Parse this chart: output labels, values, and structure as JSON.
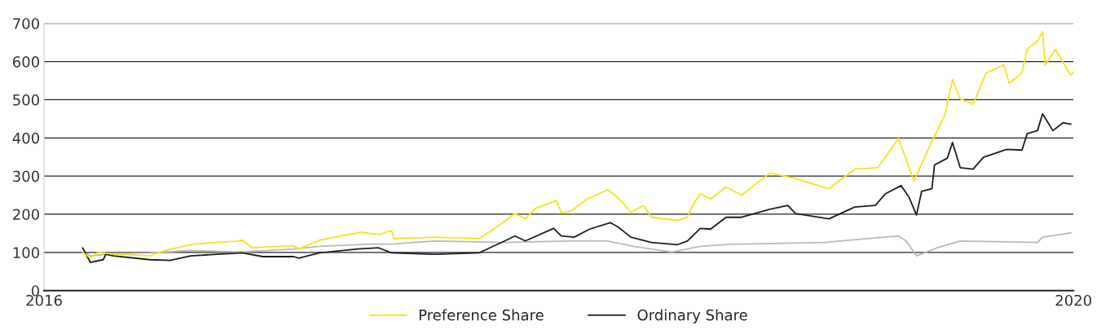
{
  "chart_data": {
    "type": "line",
    "xlim": [
      2016,
      2020
    ],
    "xticks": [
      2016,
      2020
    ],
    "ylim": [
      0,
      700
    ],
    "yticks": [
      0,
      100,
      200,
      300,
      400,
      500,
      600,
      700
    ],
    "grid": "y",
    "legend": "bottom",
    "marker": "none",
    "line_style": "solid",
    "series": [
      {
        "name": "Preference Share",
        "color": "#f2e51c",
        "x": [
          2016.15,
          2016.18,
          2016.21,
          2016.27,
          2016.41,
          2016.47,
          2016.58,
          2016.75,
          2016.77,
          2016.81,
          2016.97,
          2016.99,
          2017.07,
          2017.23,
          2017.3,
          2017.35,
          2017.36,
          2017.52,
          2017.69,
          2017.76,
          2017.83,
          2017.87,
          2017.91,
          2017.99,
          2018.01,
          2018.05,
          2018.11,
          2018.19,
          2018.23,
          2018.28,
          2018.33,
          2018.36,
          2018.46,
          2018.5,
          2018.52,
          2018.55,
          2018.59,
          2018.65,
          2018.71,
          2018.82,
          2018.91,
          2019.05,
          2019.15,
          2019.24,
          2019.32,
          2019.38,
          2019.45,
          2019.5,
          2019.53,
          2019.56,
          2019.61,
          2019.66,
          2019.73,
          2019.75,
          2019.8,
          2019.82,
          2019.86,
          2019.88,
          2019.89,
          2019.93,
          2019.96,
          2019.99,
          2020.0
        ],
        "values": [
          101,
          85,
          101,
          95,
          91,
          105,
          122,
          130,
          132,
          112,
          118,
          109,
          132,
          153,
          147,
          157,
          136,
          140,
          136,
          167,
          202,
          188,
          215,
          236,
          205,
          209,
          240,
          264,
          244,
          205,
          223,
          192,
          184,
          192,
          223,
          254,
          240,
          271,
          250,
          308,
          295,
          267,
          318,
          322,
          399,
          287,
          391,
          460,
          553,
          502,
          488,
          570,
          591,
          543,
          570,
          632,
          653,
          678,
          591,
          632,
          597,
          564,
          574
        ]
      },
      {
        "name": "Ordinary Share",
        "color": "#1e1e1e",
        "x": [
          2016.15,
          2016.18,
          2016.23,
          2016.24,
          2016.27,
          2016.41,
          2016.49,
          2016.57,
          2016.77,
          2016.85,
          2016.97,
          2016.99,
          2017.07,
          2017.22,
          2017.3,
          2017.35,
          2017.52,
          2017.69,
          2017.71,
          2017.79,
          2017.83,
          2017.87,
          2017.98,
          2018.01,
          2018.06,
          2018.12,
          2018.2,
          2018.23,
          2018.28,
          2018.36,
          2018.46,
          2018.5,
          2018.55,
          2018.59,
          2018.65,
          2018.71,
          2018.82,
          2018.89,
          2018.92,
          2019.05,
          2019.15,
          2019.23,
          2019.27,
          2019.33,
          2019.36,
          2019.39,
          2019.41,
          2019.45,
          2019.46,
          2019.51,
          2019.53,
          2019.56,
          2019.61,
          2019.65,
          2019.74,
          2019.8,
          2019.82,
          2019.86,
          2019.88,
          2019.92,
          2019.96,
          2019.99
        ],
        "values": [
          112,
          74,
          81,
          95,
          91,
          81,
          79,
          91,
          99,
          89,
          89,
          85,
          99,
          109,
          112,
          99,
          95,
          99,
          105,
          130,
          143,
          130,
          163,
          143,
          140,
          161,
          178,
          167,
          140,
          126,
          120,
          130,
          163,
          161,
          192,
          192,
          213,
          223,
          202,
          188,
          219,
          223,
          254,
          275,
          246,
          198,
          260,
          267,
          329,
          347,
          388,
          322,
          318,
          349,
          370,
          368,
          411,
          419,
          463,
          419,
          440,
          436
        ]
      },
      {
        "color": "#b9b9b9",
        "x": [
          2016.15,
          2016.18,
          2016.27,
          2016.41,
          2016.57,
          2016.77,
          2016.97,
          2017.07,
          2017.27,
          2017.35,
          2017.52,
          2017.79,
          2018.03,
          2018.19,
          2018.29,
          2018.44,
          2018.55,
          2018.68,
          2018.72,
          2019.03,
          2019.32,
          2019.35,
          2019.39,
          2019.47,
          2019.56,
          2019.86,
          2019.88,
          2019.99
        ],
        "values": [
          101,
          91,
          97,
          99,
          105,
          101,
          109,
          116,
          122,
          122,
          130,
          126,
          130,
          130,
          116,
          101,
          116,
          122,
          122,
          126,
          143,
          130,
          91,
          112,
          130,
          126,
          140,
          151
        ]
      }
    ]
  }
}
